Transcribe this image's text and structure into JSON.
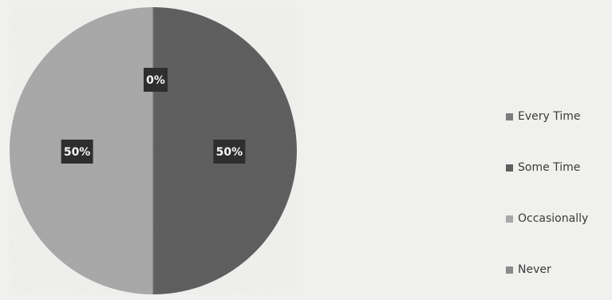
{
  "chart_data": {
    "type": "pie",
    "categories": [
      "Every Time",
      "Some Time",
      "Occasionally",
      "Never"
    ],
    "values": [
      0,
      50,
      50,
      0
    ],
    "data_labels": [
      "",
      "50%",
      "50%",
      "0%"
    ],
    "colors": [
      "#7c7c7c",
      "#5f5f5f",
      "#a9a9a9",
      "#8a8a8a"
    ],
    "legend_position": "right",
    "title": ""
  }
}
